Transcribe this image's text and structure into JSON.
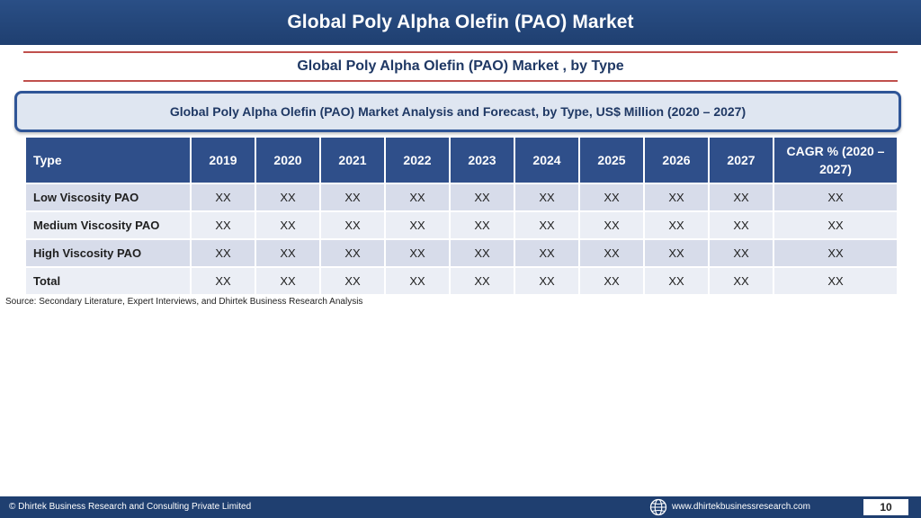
{
  "header": {
    "title": "Global Poly Alpha Olefin (PAO) Market"
  },
  "subtitle": "Global Poly Alpha Olefin (PAO) Market , by Type",
  "banner": "Global Poly Alpha Olefin (PAO) Market  Analysis and Forecast, by Type, US$ Million (2020 – 2027)",
  "table": {
    "headers": [
      "Type",
      "2019",
      "2020",
      "2021",
      "2022",
      "2023",
      "2024",
      "2025",
      "2026",
      "2027",
      "CAGR % (2020 – 2027)"
    ],
    "rows": [
      [
        "Low Viscosity PAO",
        "XX",
        "XX",
        "XX",
        "XX",
        "XX",
        "XX",
        "XX",
        "XX",
        "XX",
        "XX"
      ],
      [
        "Medium Viscosity PAO",
        "XX",
        "XX",
        "XX",
        "XX",
        "XX",
        "XX",
        "XX",
        "XX",
        "XX",
        "XX"
      ],
      [
        "High Viscosity PAO",
        "XX",
        "XX",
        "XX",
        "XX",
        "XX",
        "XX",
        "XX",
        "XX",
        "XX",
        "XX"
      ],
      [
        "Total",
        "XX",
        "XX",
        "XX",
        "XX",
        "XX",
        "XX",
        "XX",
        "XX",
        "XX",
        "XX"
      ]
    ]
  },
  "source": "Source: Secondary Literature, Expert Interviews, and Dhirtek Business Research Analysis",
  "footer": {
    "copyright": "© Dhirtek Business Research and Consulting Private Limited",
    "globe_icon": "globe-icon",
    "url": "www.dhirtekbusinessresearch.com",
    "page": "10"
  },
  "colors": {
    "header_bg": "#1f3f70",
    "table_header_bg": "#2f4f8a",
    "accent_line": "#c0504d",
    "row_dark": "#d7dcea",
    "row_light": "#ebeef5"
  }
}
